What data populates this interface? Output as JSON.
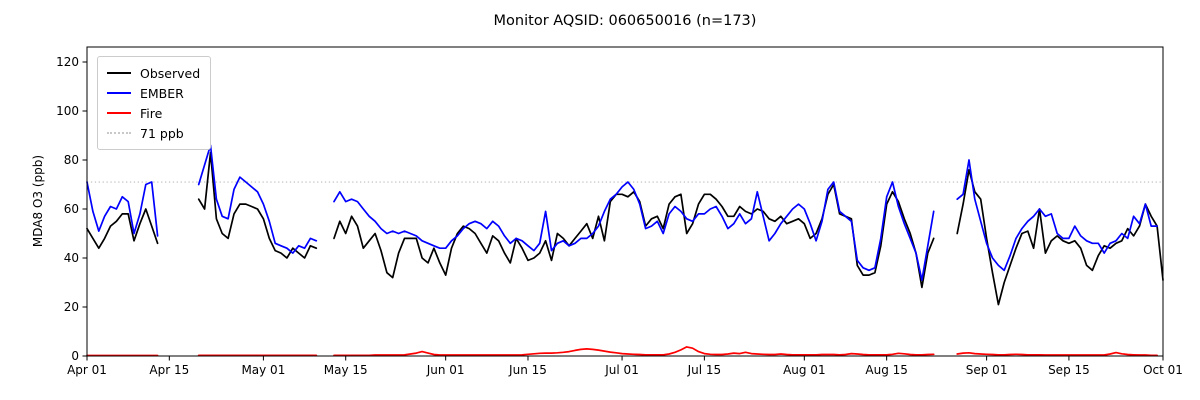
{
  "chart": {
    "title": "Monitor AQSID: 060650016 (n=173)",
    "ylabel": "MDA8 O3 (ppb)"
  },
  "legend": {
    "items": [
      {
        "label": "Observed",
        "color": "#000000",
        "dash": "solid"
      },
      {
        "label": "EMBER",
        "color": "#0000ff",
        "dash": "solid"
      },
      {
        "label": "Fire",
        "color": "#ff0000",
        "dash": "solid"
      },
      {
        "label": "71 ppb",
        "color": "#c8c8c8",
        "dash": "dotted"
      }
    ]
  },
  "chart_data": {
    "type": "line",
    "title": "Monitor AQSID: 060650016 (n=173)",
    "xlabel": "",
    "ylabel": "MDA8 O3 (ppb)",
    "ylim": [
      0,
      126
    ],
    "grid": false,
    "legend_position": "upper-left",
    "x_start": "Apr 01",
    "x_end": "Oct 01",
    "x_is_daily": true,
    "num_days": 184,
    "x_ticks": {
      "labels": [
        "Apr 01",
        "Apr 15",
        "May 01",
        "May 15",
        "Jun 01",
        "Jun 15",
        "Jul 01",
        "Jul 15",
        "Aug 01",
        "Aug 15",
        "Sep 01",
        "Sep 15",
        "Oct 01"
      ],
      "day_index": [
        0,
        14,
        30,
        44,
        61,
        75,
        91,
        105,
        122,
        136,
        153,
        167,
        183
      ]
    },
    "y_ticks": [
      0,
      20,
      40,
      60,
      80,
      100,
      120
    ],
    "threshold": {
      "value": 71,
      "label": "71 ppb",
      "color": "#c8c8c8",
      "style": "dotted"
    },
    "series": [
      {
        "name": "Observed",
        "color": "#000000",
        "values": [
          52,
          48,
          44,
          48,
          53,
          55,
          58,
          58,
          47,
          54,
          60,
          53,
          46,
          null,
          null,
          null,
          null,
          null,
          null,
          64,
          60,
          83,
          56,
          50,
          48,
          58,
          62,
          62,
          61,
          60,
          56,
          48,
          43,
          42,
          40,
          44,
          42,
          40,
          45,
          44,
          null,
          null,
          48,
          55,
          50,
          57,
          53,
          44,
          47,
          50,
          43,
          34,
          32,
          42,
          48,
          48,
          48,
          40,
          38,
          44,
          38,
          33,
          44,
          50,
          53,
          52,
          50,
          46,
          42,
          49,
          47,
          42,
          38,
          48,
          44,
          39,
          40,
          42,
          47,
          39,
          50,
          48,
          45,
          48,
          51,
          54,
          48,
          57,
          47,
          63,
          66,
          66,
          65,
          67,
          63,
          53,
          56,
          57,
          52,
          62,
          65,
          66,
          50,
          54,
          62,
          66,
          66,
          64,
          61,
          57,
          57,
          61,
          59,
          58,
          60,
          59,
          56,
          55,
          57,
          54,
          55,
          56,
          54,
          48,
          50,
          56,
          66,
          70,
          58,
          57,
          56,
          37,
          33,
          33,
          34,
          45,
          62,
          67,
          63,
          56,
          50,
          42,
          28,
          42,
          48,
          null,
          null,
          null,
          50,
          62,
          76,
          67,
          64,
          48,
          34,
          21,
          30,
          37,
          44,
          50,
          51,
          44,
          60,
          42,
          47,
          49,
          47,
          46,
          47,
          44,
          37,
          35,
          41,
          45,
          44,
          46,
          47,
          52,
          49,
          53,
          62,
          57,
          53,
          31
        ]
      },
      {
        "name": "EMBER",
        "color": "#0000ff",
        "values": [
          71,
          59,
          51,
          57,
          61,
          60,
          65,
          63,
          50,
          58,
          70,
          71,
          49,
          null,
          null,
          null,
          null,
          null,
          null,
          70,
          78,
          86,
          64,
          57,
          56,
          68,
          73,
          71,
          69,
          67,
          62,
          55,
          46,
          45,
          44,
          42,
          45,
          44,
          48,
          47,
          null,
          null,
          63,
          67,
          63,
          64,
          63,
          60,
          57,
          55,
          52,
          50,
          51,
          50,
          51,
          50,
          49,
          47,
          46,
          45,
          44,
          44,
          47,
          49,
          52,
          54,
          55,
          54,
          52,
          55,
          53,
          49,
          46,
          48,
          47,
          45,
          43,
          46,
          59,
          43,
          46,
          47,
          45,
          46,
          48,
          48,
          50,
          53,
          59,
          64,
          66,
          69,
          71,
          68,
          62,
          52,
          53,
          55,
          50,
          58,
          61,
          59,
          56,
          55,
          58,
          58,
          60,
          61,
          57,
          52,
          54,
          58,
          54,
          56,
          67,
          57,
          47,
          50,
          54,
          57,
          60,
          62,
          60,
          54,
          47,
          55,
          68,
          71,
          59,
          57,
          55,
          39,
          36,
          35,
          36,
          48,
          65,
          71,
          61,
          54,
          48,
          42,
          31,
          45,
          59,
          null,
          null,
          null,
          64,
          66,
          80,
          64,
          55,
          46,
          40,
          37,
          35,
          41,
          48,
          52,
          55,
          57,
          60,
          57,
          58,
          50,
          48,
          48,
          53,
          49,
          47,
          46,
          46,
          42,
          46,
          47,
          50,
          48,
          57,
          54,
          62,
          53,
          53,
          null
        ]
      },
      {
        "name": "Fire",
        "color": "#ff0000",
        "values": [
          0.2,
          0.2,
          0.2,
          0.2,
          0.2,
          0.2,
          0.2,
          0.2,
          0.2,
          0.2,
          0.2,
          0.2,
          0.2,
          null,
          null,
          null,
          null,
          null,
          null,
          0.3,
          0.3,
          0.3,
          0.3,
          0.3,
          0.3,
          0.3,
          0.3,
          0.3,
          0.3,
          0.3,
          0.3,
          0.3,
          0.3,
          0.3,
          0.3,
          0.3,
          0.3,
          0.3,
          0.3,
          0.3,
          null,
          null,
          0.3,
          0.3,
          0.3,
          0.3,
          0.3,
          0.3,
          0.3,
          0.4,
          0.4,
          0.4,
          0.4,
          0.4,
          0.5,
          0.8,
          1.2,
          1.8,
          1.2,
          0.6,
          0.4,
          0.4,
          0.4,
          0.4,
          0.4,
          0.4,
          0.4,
          0.4,
          0.4,
          0.4,
          0.4,
          0.4,
          0.4,
          0.4,
          0.5,
          0.7,
          0.9,
          1.1,
          1.2,
          1.2,
          1.3,
          1.5,
          1.8,
          2.3,
          2.7,
          2.9,
          2.7,
          2.4,
          2.0,
          1.6,
          1.3,
          1.0,
          0.8,
          0.7,
          0.6,
          0.5,
          0.5,
          0.5,
          0.5,
          0.8,
          1.5,
          2.5,
          3.7,
          3.2,
          1.8,
          1.0,
          0.7,
          0.6,
          0.6,
          0.8,
          1.2,
          1.0,
          1.5,
          1.0,
          0.8,
          0.7,
          0.6,
          0.6,
          0.8,
          0.6,
          0.5,
          0.5,
          0.5,
          0.5,
          0.5,
          0.6,
          0.6,
          0.6,
          0.5,
          0.6,
          1.0,
          0.8,
          0.6,
          0.5,
          0.5,
          0.5,
          0.5,
          0.7,
          1.1,
          0.9,
          0.6,
          0.5,
          0.5,
          0.6,
          0.7,
          null,
          null,
          null,
          0.8,
          1.2,
          1.3,
          1.0,
          0.8,
          0.7,
          0.6,
          0.5,
          0.5,
          0.6,
          0.7,
          0.6,
          0.5,
          0.5,
          0.5,
          0.4,
          0.4,
          0.4,
          0.4,
          0.4,
          0.4,
          0.4,
          0.4,
          0.4,
          0.4,
          0.4,
          0.8,
          1.4,
          0.9,
          0.6,
          0.5,
          0.4,
          0.4,
          0.3,
          0.3,
          null
        ]
      }
    ]
  }
}
